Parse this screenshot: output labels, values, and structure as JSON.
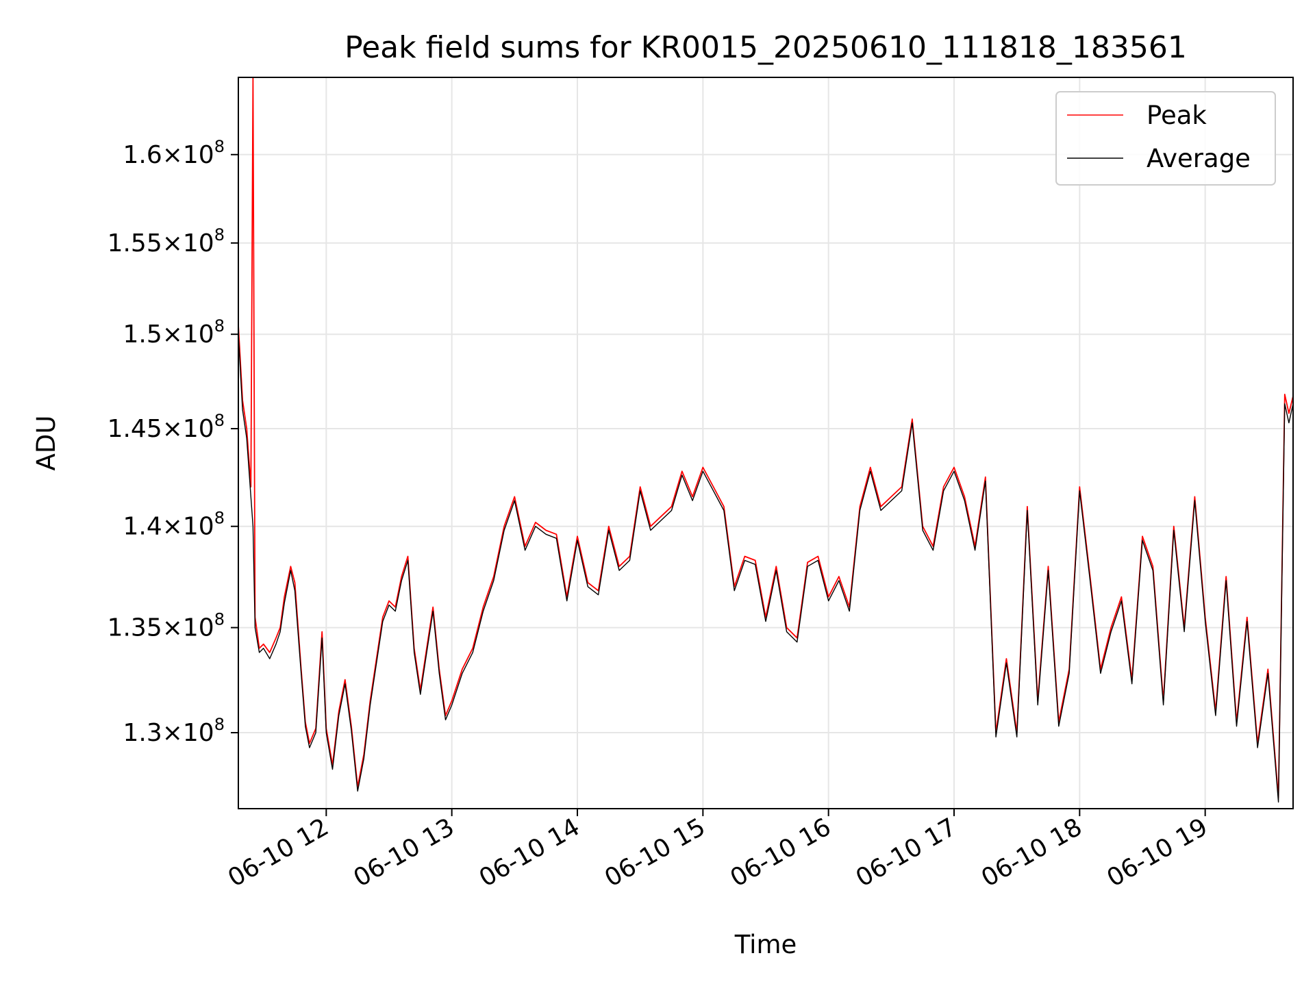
{
  "chart_data": {
    "type": "line",
    "title": "Peak field sums for KR0015_20250610_111818_183561",
    "xlabel": "Time",
    "ylabel": "ADU",
    "y_scale": "log",
    "grid": true,
    "legend_position": "top-right",
    "xlim": [
      "06-10 11:18",
      "06-10 19:42"
    ],
    "ylim": [
      126500000,
      164500000
    ],
    "x_ticks": [
      "06-10 12",
      "06-10 13",
      "06-10 14",
      "06-10 15",
      "06-10 16",
      "06-10 17",
      "06-10 18",
      "06-10 19"
    ],
    "y_ticks": [
      {
        "value": 130000000,
        "mantissa": "1.3",
        "exponent": "8"
      },
      {
        "value": 135000000,
        "mantissa": "1.35",
        "exponent": "8"
      },
      {
        "value": 140000000,
        "mantissa": "1.4",
        "exponent": "8"
      },
      {
        "value": 145000000,
        "mantissa": "1.45",
        "exponent": "8"
      },
      {
        "value": 150000000,
        "mantissa": "1.5",
        "exponent": "8"
      },
      {
        "value": 155000000,
        "mantissa": "1.55",
        "exponent": "8"
      },
      {
        "value": 160000000,
        "mantissa": "1.6",
        "exponent": "8"
      }
    ],
    "x": [
      "06-10 11:18",
      "06-10 11:20",
      "06-10 11:22",
      "06-10 11:24",
      "06-10 11:25",
      "06-10 11:26",
      "06-10 11:28",
      "06-10 11:30",
      "06-10 11:33",
      "06-10 11:36",
      "06-10 11:38",
      "06-10 11:40",
      "06-10 11:43",
      "06-10 11:45",
      "06-10 11:48",
      "06-10 11:50",
      "06-10 11:52",
      "06-10 11:55",
      "06-10 11:58",
      "06-10 12:00",
      "06-10 12:03",
      "06-10 12:06",
      "06-10 12:09",
      "06-10 12:12",
      "06-10 12:15",
      "06-10 12:18",
      "06-10 12:21",
      "06-10 12:24",
      "06-10 12:27",
      "06-10 12:30",
      "06-10 12:33",
      "06-10 12:36",
      "06-10 12:39",
      "06-10 12:42",
      "06-10 12:45",
      "06-10 12:48",
      "06-10 12:51",
      "06-10 12:54",
      "06-10 12:57",
      "06-10 13:00",
      "06-10 13:05",
      "06-10 13:10",
      "06-10 13:15",
      "06-10 13:20",
      "06-10 13:25",
      "06-10 13:30",
      "06-10 13:35",
      "06-10 13:40",
      "06-10 13:45",
      "06-10 13:50",
      "06-10 13:55",
      "06-10 14:00",
      "06-10 14:05",
      "06-10 14:10",
      "06-10 14:15",
      "06-10 14:20",
      "06-10 14:25",
      "06-10 14:30",
      "06-10 14:35",
      "06-10 14:40",
      "06-10 14:45",
      "06-10 14:50",
      "06-10 14:55",
      "06-10 15:00",
      "06-10 15:05",
      "06-10 15:10",
      "06-10 15:15",
      "06-10 15:20",
      "06-10 15:25",
      "06-10 15:30",
      "06-10 15:35",
      "06-10 15:40",
      "06-10 15:45",
      "06-10 15:50",
      "06-10 15:55",
      "06-10 16:00",
      "06-10 16:05",
      "06-10 16:10",
      "06-10 16:15",
      "06-10 16:20",
      "06-10 16:25",
      "06-10 16:30",
      "06-10 16:35",
      "06-10 16:40",
      "06-10 16:45",
      "06-10 16:50",
      "06-10 16:55",
      "06-10 17:00",
      "06-10 17:05",
      "06-10 17:10",
      "06-10 17:15",
      "06-10 17:20",
      "06-10 17:25",
      "06-10 17:30",
      "06-10 17:35",
      "06-10 17:40",
      "06-10 17:45",
      "06-10 17:50",
      "06-10 17:55",
      "06-10 18:00",
      "06-10 18:05",
      "06-10 18:10",
      "06-10 18:15",
      "06-10 18:20",
      "06-10 18:25",
      "06-10 18:30",
      "06-10 18:35",
      "06-10 18:40",
      "06-10 18:45",
      "06-10 18:50",
      "06-10 18:55",
      "06-10 19:00",
      "06-10 19:05",
      "06-10 19:10",
      "06-10 19:15",
      "06-10 19:20",
      "06-10 19:25",
      "06-10 19:30",
      "06-10 19:35",
      "06-10 19:38",
      "06-10 19:40",
      "06-10 19:42"
    ],
    "series": [
      {
        "name": "Peak",
        "color": "#ff0000",
        "values": [
          150500000,
          146500000,
          145000000,
          142000000,
          164500000,
          135500000,
          134000000,
          134200000,
          133800000,
          134500000,
          135000000,
          136500000,
          138000000,
          137200000,
          133000000,
          130500000,
          129500000,
          130200000,
          134800000,
          130200000,
          128500000,
          131000000,
          132500000,
          130300000,
          127500000,
          129000000,
          131500000,
          133500000,
          135500000,
          136300000,
          136000000,
          137500000,
          138500000,
          134000000,
          132000000,
          134000000,
          136000000,
          133000000,
          130800000,
          131500000,
          133000000,
          134000000,
          136000000,
          137500000,
          140000000,
          141500000,
          139000000,
          140200000,
          139800000,
          139600000,
          136500000,
          139500000,
          137200000,
          136800000,
          140000000,
          138000000,
          138500000,
          142000000,
          140000000,
          140500000,
          141000000,
          142800000,
          141500000,
          143000000,
          142000000,
          141000000,
          137000000,
          138500000,
          138300000,
          135500000,
          138000000,
          135000000,
          134500000,
          138200000,
          138500000,
          136500000,
          137500000,
          136000000,
          141000000,
          143000000,
          141000000,
          141500000,
          142000000,
          145500000,
          140000000,
          139000000,
          142000000,
          143000000,
          141500000,
          139000000,
          142500000,
          130000000,
          133500000,
          130000000,
          141000000,
          131500000,
          138000000,
          130500000,
          133000000,
          142000000,
          137500000,
          133000000,
          135000000,
          136500000,
          132500000,
          139500000,
          138000000,
          131500000,
          140000000,
          135000000,
          141500000,
          135500000,
          131000000,
          137500000,
          130500000,
          135500000,
          129500000,
          133000000,
          127000000,
          146800000,
          145800000,
          146700000
        ]
      },
      {
        "name": "Average",
        "color": "#000000",
        "values": [
          150000000,
          146000000,
          144500000,
          141500000,
          140000000,
          135000000,
          133800000,
          134000000,
          133500000,
          134200000,
          134800000,
          136200000,
          137800000,
          136800000,
          132800000,
          130300000,
          129300000,
          130000000,
          134500000,
          130000000,
          128300000,
          130800000,
          132300000,
          130100000,
          127300000,
          128800000,
          131300000,
          133300000,
          135300000,
          136100000,
          135800000,
          137300000,
          138300000,
          133800000,
          131800000,
          133800000,
          135800000,
          132800000,
          130600000,
          131300000,
          132800000,
          133800000,
          135800000,
          137300000,
          139800000,
          141300000,
          138800000,
          140000000,
          139600000,
          139400000,
          136300000,
          139300000,
          137000000,
          136600000,
          139800000,
          137800000,
          138300000,
          141800000,
          139800000,
          140300000,
          140800000,
          142600000,
          141300000,
          142800000,
          141800000,
          140800000,
          136800000,
          138300000,
          138100000,
          135300000,
          137800000,
          134800000,
          134300000,
          138000000,
          138300000,
          136300000,
          137300000,
          135800000,
          140800000,
          142800000,
          140800000,
          141300000,
          141800000,
          145300000,
          139800000,
          138800000,
          141800000,
          142800000,
          141300000,
          138800000,
          142300000,
          129800000,
          133300000,
          129800000,
          140800000,
          131300000,
          137800000,
          130300000,
          132800000,
          141800000,
          137300000,
          132800000,
          134800000,
          136300000,
          132300000,
          139300000,
          137800000,
          131300000,
          139800000,
          134800000,
          141300000,
          135300000,
          130800000,
          137300000,
          130300000,
          135300000,
          129300000,
          132800000,
          126800000,
          146300000,
          145300000,
          146300000
        ]
      }
    ]
  }
}
